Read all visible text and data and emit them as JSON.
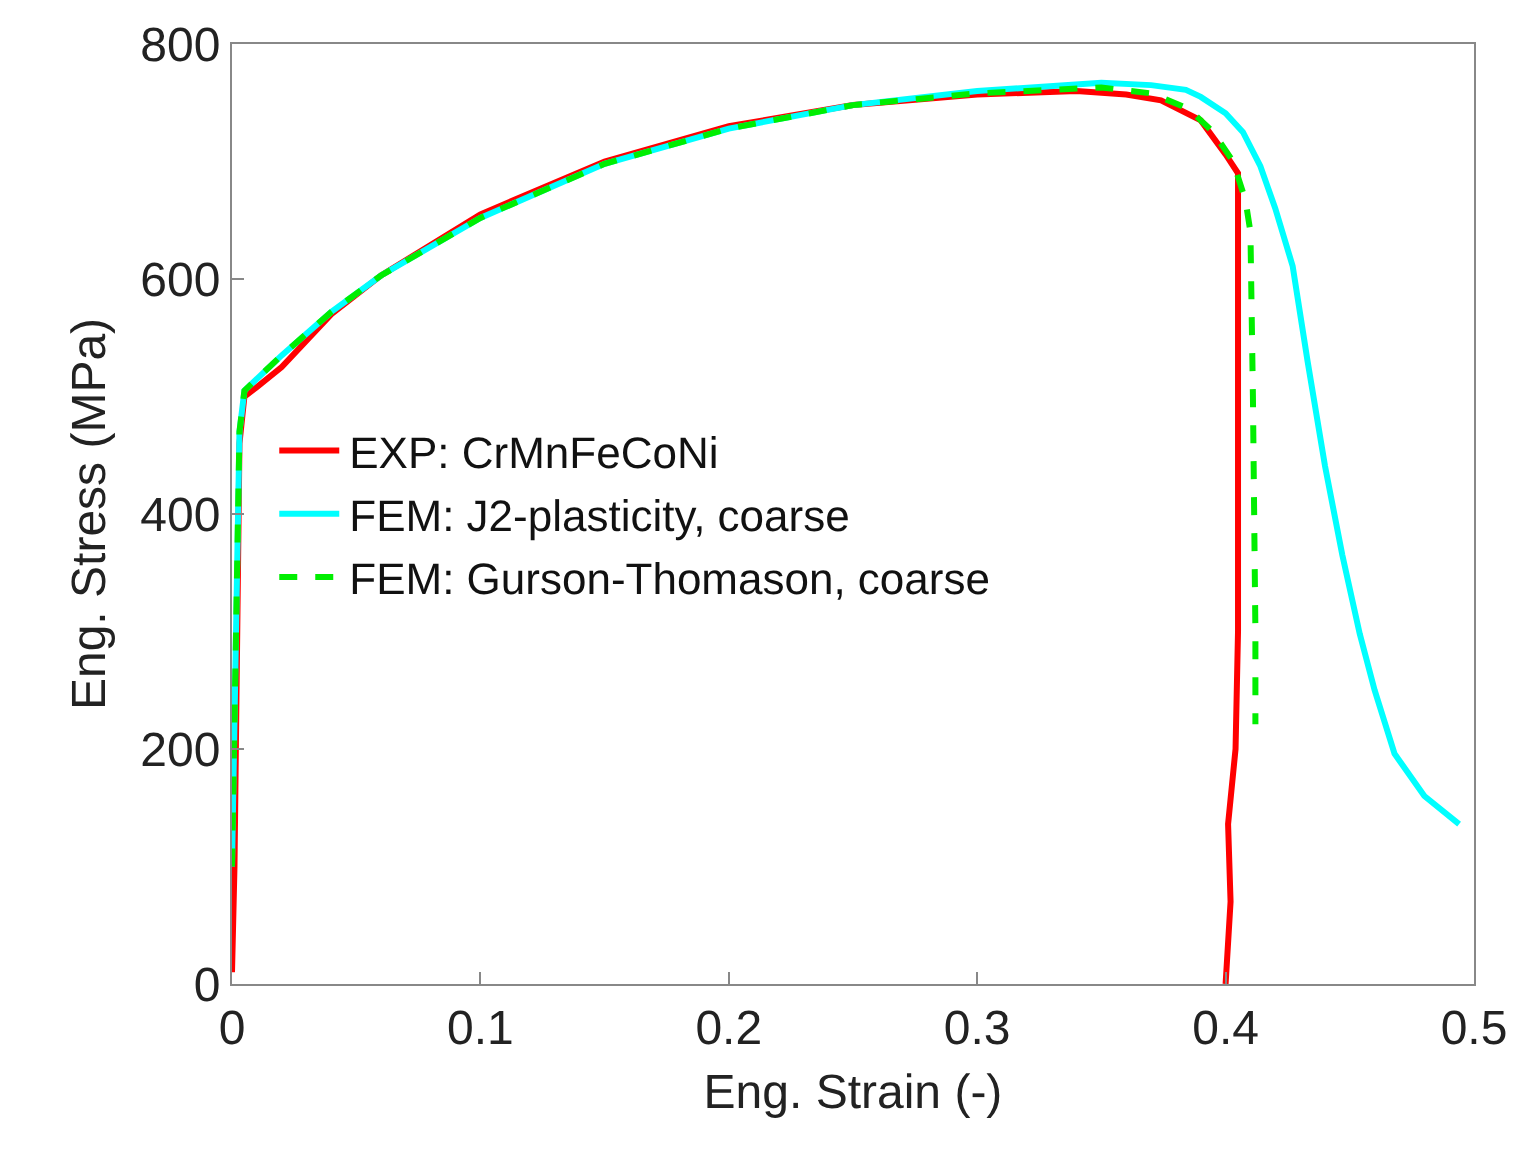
{
  "chart_data": {
    "type": "line",
    "xlabel": "Eng. Strain (-)",
    "ylabel": "Eng. Stress (MPa)",
    "xlim": [
      0,
      0.5
    ],
    "xticks": [
      0,
      0.1,
      0.2,
      0.3,
      0.4,
      0.5
    ],
    "ylim": [
      0,
      800
    ],
    "yticks": [
      0,
      200,
      400,
      600,
      800
    ],
    "grid": false,
    "legend": "left",
    "marker": "none",
    "series": [
      {
        "name": "EXP: CrMnFeCoNi",
        "color": "#ff0000",
        "line_style": "solid",
        "x": [
          0,
          0.001,
          0.003,
          0.005,
          0.01,
          0.02,
          0.04,
          0.06,
          0.1,
          0.15,
          0.2,
          0.25,
          0.3,
          0.34,
          0.36,
          0.374,
          0.39,
          0.4,
          0.405,
          0.405,
          0.405,
          0.404,
          0.401,
          0.402,
          0.4
        ],
        "values": [
          10,
          100,
          460,
          500,
          508,
          525,
          570,
          603,
          655,
          700,
          730,
          748,
          757,
          760,
          757,
          752,
          735,
          706,
          690,
          500,
          300,
          200,
          136,
          70,
          0
        ]
      },
      {
        "name": "FEM: J2-plasticity, coarse",
        "color": "#00ffff",
        "line_style": "solid",
        "x": [
          0,
          0.003,
          0.005,
          0.02,
          0.04,
          0.06,
          0.1,
          0.15,
          0.2,
          0.25,
          0.3,
          0.35,
          0.37,
          0.384,
          0.39,
          0.4,
          0.407,
          0.414,
          0.42,
          0.427,
          0.433,
          0.44,
          0.447,
          0.454,
          0.46,
          0.468,
          0.48,
          0.494
        ],
        "values": [
          100,
          470,
          505,
          535,
          572,
          603,
          652,
          698,
          728,
          748,
          760,
          767,
          765,
          761,
          755,
          741,
          725,
          696,
          660,
          611,
          530,
          441,
          365,
          298,
          250,
          196,
          160,
          136
        ]
      },
      {
        "name": "FEM: Gurson-Thomason, coarse",
        "color": "#00ee00",
        "line_style": "dashed",
        "x": [
          0,
          0.003,
          0.005,
          0.02,
          0.04,
          0.06,
          0.1,
          0.15,
          0.2,
          0.25,
          0.3,
          0.35,
          0.37,
          0.385,
          0.395,
          0.403,
          0.408,
          0.41,
          0.411,
          0.412,
          0.412
        ],
        "values": [
          100,
          470,
          505,
          535,
          572,
          603,
          652,
          698,
          728,
          748,
          758,
          763,
          758,
          745,
          725,
          700,
          667,
          640,
          500,
          300,
          221
        ]
      }
    ]
  }
}
